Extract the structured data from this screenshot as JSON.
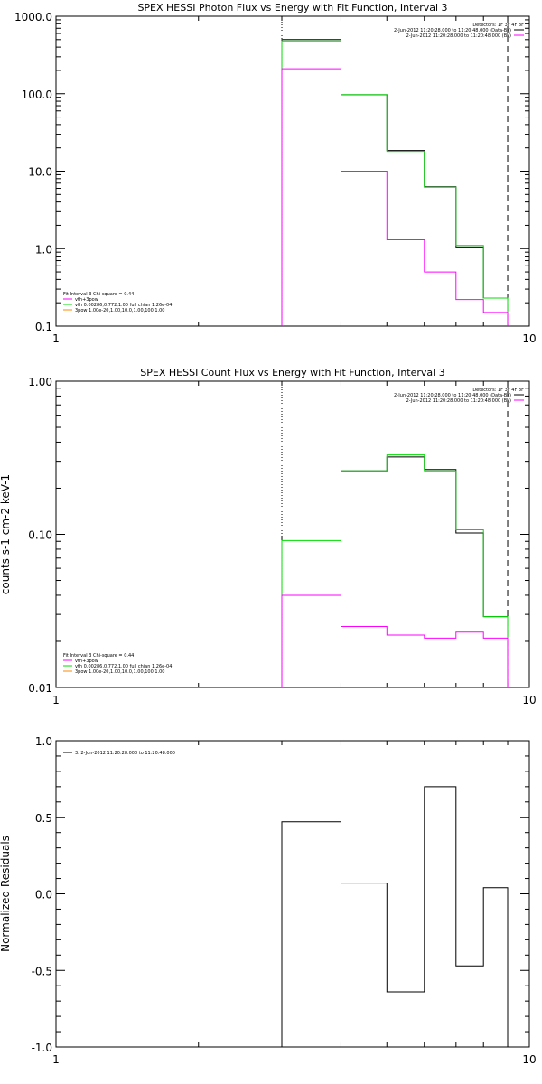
{
  "chart_data": [
    {
      "type": "line",
      "title": "SPEX HESSI Photon Flux vs Energy with Fit Function, Interval 3",
      "xlabel": "",
      "ylabel": "",
      "x_scale": "log",
      "y_scale": "log",
      "xlim": [
        1,
        10
      ],
      "ylim": [
        0.1,
        1000
      ],
      "x_tick_labels": [
        "1",
        "10"
      ],
      "y_tick_labels": [
        "0.1",
        "1.0",
        "10.0",
        "100.0",
        "1000.0"
      ],
      "legend_tr": [
        "Detectors: 1F 3F 4F 8F",
        "2-Jun-2012 11:20:28.000 to 11:20:48.000 (Data-Bk)",
        "2-Jun-2012 11:20:28.000 to 11:20:48.000 (Bk)"
      ],
      "legend_bl": [
        "Fit Interval 3   Chi-square = 0.44",
        "vth+3pow",
        "vth 0.00286,0.772,1.00  full chian 1.26e-04",
        "3pow 1.00e-20,1.00,10.0,1.00,100,1.00"
      ],
      "bin_edges": [
        3.0,
        4.0,
        5.0,
        6.0,
        7.0,
        8.0,
        9.0
      ],
      "series": [
        {
          "color": "#000000",
          "values": [
            500,
            97,
            18.5,
            6.3,
            1.05,
            0.23
          ]
        },
        {
          "color": "#00dd00",
          "values": [
            480,
            97,
            18,
            6.2,
            1.1,
            0.23
          ]
        },
        {
          "color": "#ff00ff",
          "values": [
            210,
            10,
            1.3,
            0.5,
            0.22,
            0.15
          ]
        }
      ],
      "vlines": [
        {
          "x": 3.0,
          "style": "dotted"
        },
        {
          "x": 9.0,
          "style": "dashed"
        }
      ]
    },
    {
      "type": "line",
      "title": "SPEX HESSI Count Flux vs Energy with Fit Function, Interval 3",
      "xlabel": "",
      "ylabel": "counts s-1 cm-2 keV-1",
      "x_scale": "log",
      "y_scale": "log",
      "xlim": [
        1,
        10
      ],
      "ylim": [
        0.01,
        1.0
      ],
      "x_tick_labels": [
        "1",
        "10"
      ],
      "y_tick_labels": [
        "0.01",
        "0.10",
        "1.00"
      ],
      "legend_tr": [
        "Detectors: 1F 3F 4F 8F",
        "2-Jun-2012 11:20:28.000 to 11:20:48.000 (Data-Bk)",
        "2-Jun-2012 11:20:28.000 to 11:20:48.000 (Bk)"
      ],
      "legend_bl": [
        "Fit Interval 3   Chi-square = 0.44",
        "vth+3pow",
        "vth 0.00286,0.772,1.00  full chian 1.26e-04",
        "3pow 1.00e-20,1.00,10.0,1.00,100,1.00"
      ],
      "bin_edges": [
        3.0,
        4.0,
        5.0,
        6.0,
        7.0,
        8.0,
        9.0
      ],
      "series": [
        {
          "color": "#000000",
          "values": [
            0.096,
            0.26,
            0.32,
            0.265,
            0.102,
            0.029
          ]
        },
        {
          "color": "#00dd00",
          "values": [
            0.091,
            0.26,
            0.33,
            0.26,
            0.107,
            0.029
          ]
        },
        {
          "color": "#ff00ff",
          "values": [
            0.04,
            0.025,
            0.022,
            0.021,
            0.023,
            0.021
          ]
        }
      ],
      "vlines": [
        {
          "x": 3.0,
          "style": "dotted"
        },
        {
          "x": 9.0,
          "style": "dashed"
        }
      ]
    },
    {
      "type": "line",
      "title": "",
      "xlabel": "",
      "ylabel": "Normalized Residuals",
      "x_scale": "log",
      "y_scale": "linear",
      "xlim": [
        1,
        10
      ],
      "ylim": [
        -1.0,
        1.0
      ],
      "x_tick_labels": [
        "1",
        "10"
      ],
      "y_tick_labels": [
        "-1.0",
        "-0.5",
        "0.0",
        "0.5",
        "1.0"
      ],
      "legend_tl": [
        "3.  2-Jun-2012 11:20:28.000 to 11:20:48.000"
      ],
      "bin_edges": [
        3.0,
        4.0,
        5.0,
        6.0,
        7.0,
        8.0,
        9.0
      ],
      "series": [
        {
          "color": "#000000",
          "values": [
            0.47,
            0.07,
            -0.64,
            0.7,
            -0.47,
            0.04
          ]
        }
      ]
    }
  ]
}
